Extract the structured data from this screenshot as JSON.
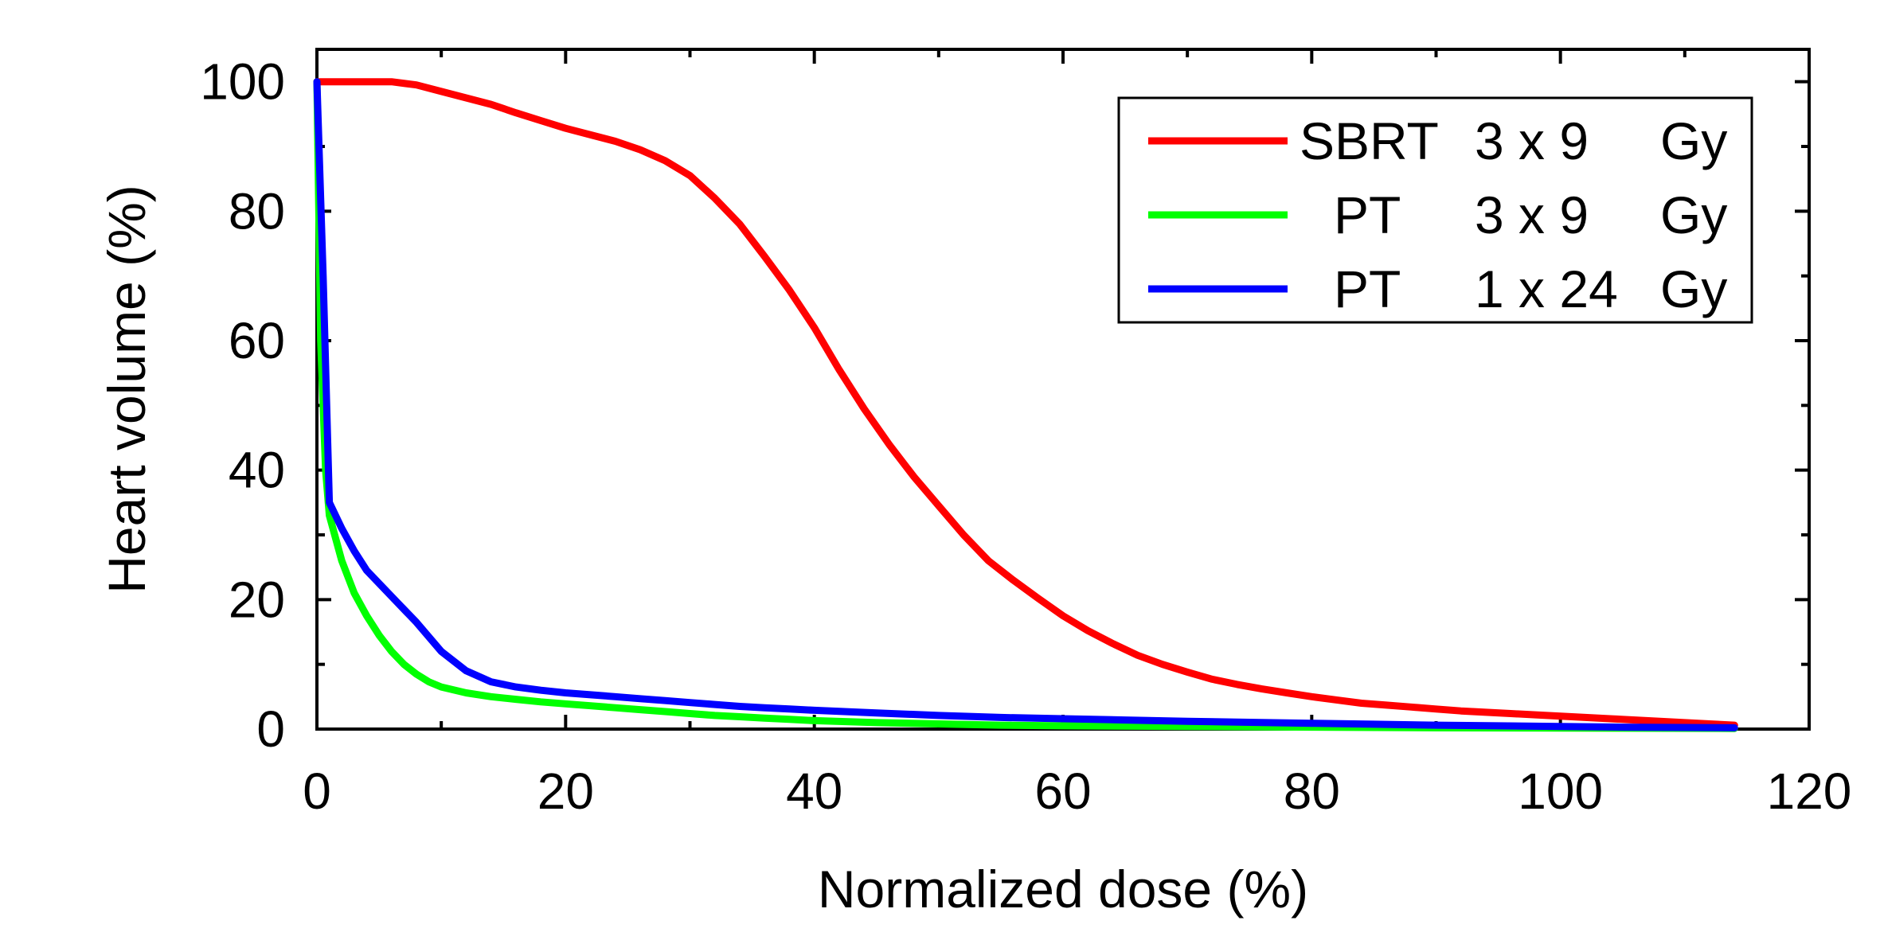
{
  "chart_data": {
    "type": "line",
    "title": "",
    "xlabel": "Normalized dose (%)",
    "ylabel": "Heart volume (%)",
    "xlim": [
      0,
      120
    ],
    "ylim": [
      0,
      105
    ],
    "x_ticks": [
      "0",
      "20",
      "40",
      "60",
      "80",
      "100",
      "120"
    ],
    "y_ticks": [
      "0",
      "20",
      "40",
      "60",
      "80",
      "100"
    ],
    "grid": false,
    "legend_position": "top-right",
    "series": [
      {
        "name": "SBRT 3 x 9   Gy",
        "legend_parts": [
          "SBRT",
          "3 x 9",
          "Gy"
        ],
        "color": "#ff0000",
        "points": [
          [
            0,
            100
          ],
          [
            2,
            100
          ],
          [
            4,
            100
          ],
          [
            6,
            100
          ],
          [
            8,
            99.5
          ],
          [
            10,
            98.5
          ],
          [
            12,
            97.5
          ],
          [
            14,
            96.5
          ],
          [
            16,
            95.2
          ],
          [
            18,
            94
          ],
          [
            20,
            92.8
          ],
          [
            22,
            91.8
          ],
          [
            24,
            90.8
          ],
          [
            26,
            89.5
          ],
          [
            28,
            87.8
          ],
          [
            30,
            85.5
          ],
          [
            32,
            82
          ],
          [
            34,
            78
          ],
          [
            36,
            73
          ],
          [
            38,
            67.8
          ],
          [
            40,
            62
          ],
          [
            42,
            55.5
          ],
          [
            44,
            49.5
          ],
          [
            46,
            44
          ],
          [
            48,
            39
          ],
          [
            50,
            34.5
          ],
          [
            52,
            30
          ],
          [
            54,
            26
          ],
          [
            56,
            23
          ],
          [
            58,
            20.2
          ],
          [
            60,
            17.5
          ],
          [
            62,
            15.2
          ],
          [
            64,
            13.2
          ],
          [
            66,
            11.4
          ],
          [
            68,
            10
          ],
          [
            70,
            8.8
          ],
          [
            72,
            7.7
          ],
          [
            74,
            6.9
          ],
          [
            76,
            6.2
          ],
          [
            78,
            5.6
          ],
          [
            80,
            5
          ],
          [
            82,
            4.5
          ],
          [
            84,
            4
          ],
          [
            86,
            3.7
          ],
          [
            88,
            3.4
          ],
          [
            90,
            3.1
          ],
          [
            92,
            2.8
          ],
          [
            94,
            2.6
          ],
          [
            96,
            2.4
          ],
          [
            98,
            2.2
          ],
          [
            100,
            2
          ],
          [
            102,
            1.8
          ],
          [
            104,
            1.6
          ],
          [
            106,
            1.4
          ],
          [
            108,
            1.2
          ],
          [
            110,
            1
          ],
          [
            112,
            0.8
          ],
          [
            114,
            0.6
          ]
        ]
      },
      {
        "name": "PT    3 x 9   Gy",
        "legend_parts": [
          "PT",
          "3 x 9",
          "Gy"
        ],
        "color": "#00ff00",
        "points": [
          [
            0,
            100
          ],
          [
            0.3,
            60
          ],
          [
            0.7,
            40
          ],
          [
            1,
            33
          ],
          [
            2,
            26
          ],
          [
            3,
            21
          ],
          [
            4,
            17.5
          ],
          [
            5,
            14.5
          ],
          [
            6,
            12
          ],
          [
            7,
            10
          ],
          [
            8,
            8.5
          ],
          [
            9,
            7.3
          ],
          [
            10,
            6.5
          ],
          [
            12,
            5.6
          ],
          [
            14,
            5
          ],
          [
            16,
            4.6
          ],
          [
            18,
            4.2
          ],
          [
            20,
            3.9
          ],
          [
            22,
            3.6
          ],
          [
            24,
            3.3
          ],
          [
            26,
            3
          ],
          [
            28,
            2.7
          ],
          [
            30,
            2.4
          ],
          [
            32,
            2.1
          ],
          [
            34,
            1.9
          ],
          [
            36,
            1.7
          ],
          [
            38,
            1.5
          ],
          [
            40,
            1.3
          ],
          [
            45,
            1
          ],
          [
            50,
            0.8
          ],
          [
            55,
            0.6
          ],
          [
            60,
            0.5
          ],
          [
            70,
            0.4
          ],
          [
            80,
            0.3
          ],
          [
            90,
            0.2
          ],
          [
            100,
            0.15
          ],
          [
            114,
            0.1
          ]
        ]
      },
      {
        "name": "PT    1 x 24 Gy",
        "legend_parts": [
          "PT",
          "1 x 24",
          "Gy"
        ],
        "color": "#0000ff",
        "points": [
          [
            0,
            100
          ],
          [
            0.5,
            70
          ],
          [
            1,
            35
          ],
          [
            2,
            31
          ],
          [
            3,
            27.5
          ],
          [
            4,
            24.5
          ],
          [
            6,
            20.5
          ],
          [
            8,
            16.5
          ],
          [
            10,
            12
          ],
          [
            12,
            9
          ],
          [
            14,
            7.3
          ],
          [
            16,
            6.5
          ],
          [
            18,
            6
          ],
          [
            20,
            5.6
          ],
          [
            22,
            5.3
          ],
          [
            24,
            5
          ],
          [
            26,
            4.7
          ],
          [
            28,
            4.4
          ],
          [
            30,
            4.1
          ],
          [
            32,
            3.8
          ],
          [
            34,
            3.5
          ],
          [
            36,
            3.3
          ],
          [
            38,
            3.1
          ],
          [
            40,
            2.9
          ],
          [
            45,
            2.5
          ],
          [
            50,
            2.1
          ],
          [
            55,
            1.8
          ],
          [
            60,
            1.6
          ],
          [
            65,
            1.4
          ],
          [
            70,
            1.2
          ],
          [
            75,
            1.05
          ],
          [
            80,
            0.9
          ],
          [
            85,
            0.75
          ],
          [
            90,
            0.6
          ],
          [
            95,
            0.5
          ],
          [
            100,
            0.4
          ],
          [
            105,
            0.3
          ],
          [
            110,
            0.25
          ],
          [
            114,
            0.2
          ]
        ]
      }
    ]
  }
}
